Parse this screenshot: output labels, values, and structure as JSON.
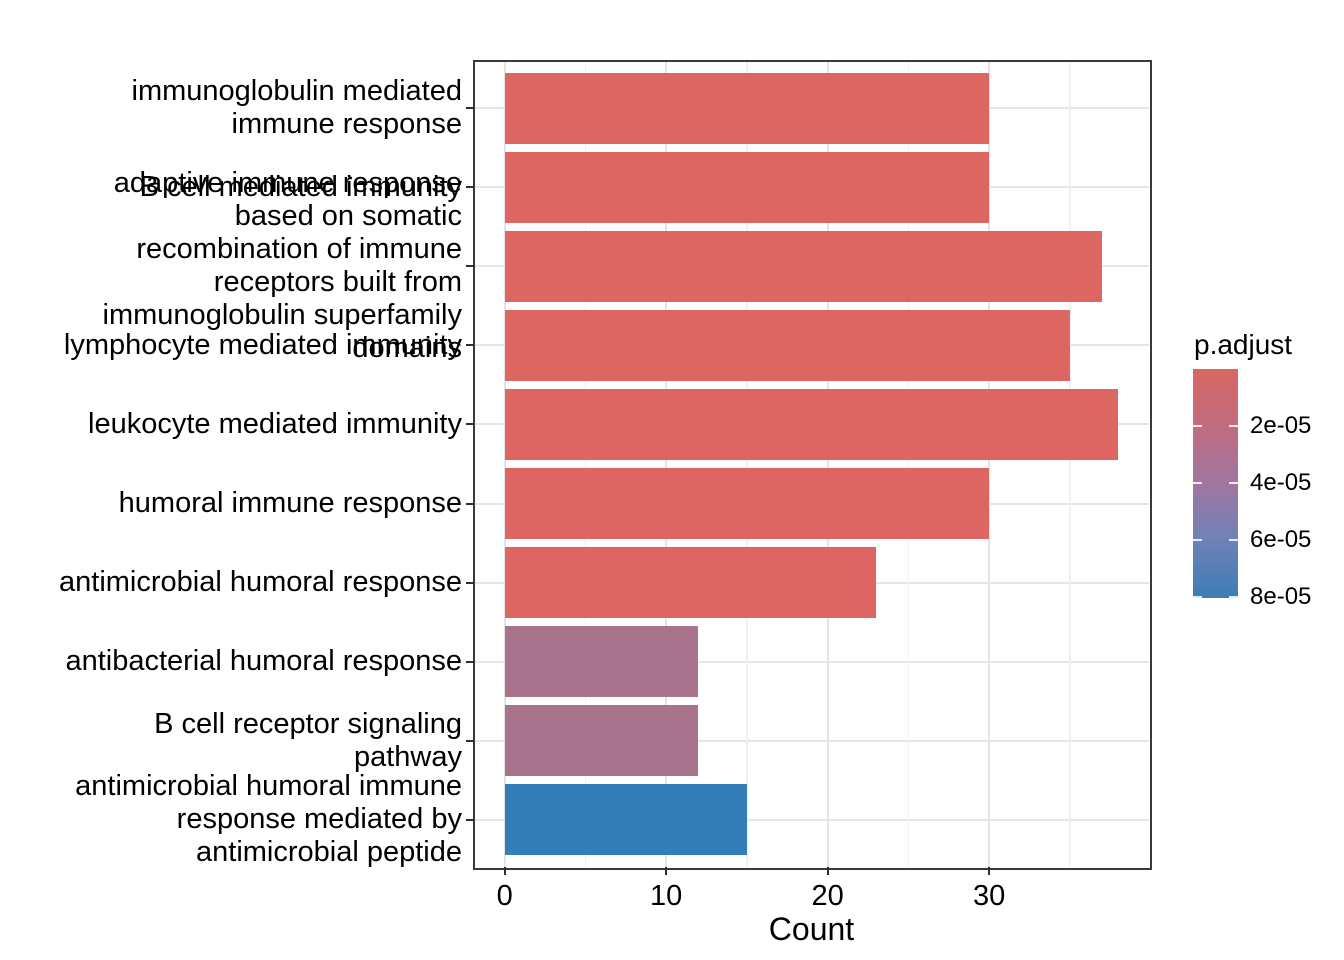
{
  "chart_data": {
    "type": "bar",
    "orientation": "horizontal",
    "title": "",
    "xlabel": "Count",
    "ylabel": "",
    "x_ticks": [
      0,
      10,
      20,
      30
    ],
    "x_minor_ticks": [
      5,
      15,
      25,
      35
    ],
    "xlim": [
      -1.9,
      39.9
    ],
    "grid": true,
    "legend_position": "right",
    "categories": [
      "immunoglobulin mediated immune response",
      "B cell mediated immunity",
      "adaptive immune response based on somatic recombination of immune receptors built from immunoglobulin superfamily domains",
      "lymphocyte mediated immunity",
      "leukocyte mediated immunity",
      "humoral immune response",
      "antimicrobial humoral response",
      "antibacterial humoral response",
      "B cell receptor signaling pathway",
      "antimicrobial humoral immune response mediated by antimicrobial peptide"
    ],
    "categories_wrapped": [
      [
        "immunoglobulin mediated",
        "immune response"
      ],
      [
        "B cell mediated immunity"
      ],
      [
        "adaptive immune response",
        "based on somatic",
        "recombination of immune",
        "receptors built from",
        "immunoglobulin superfamily",
        "domains"
      ],
      [
        "lymphocyte mediated immunity"
      ],
      [
        "leukocyte mediated immunity"
      ],
      [
        "humoral immune response"
      ],
      [
        "antimicrobial humoral response"
      ],
      [
        "antibacterial humoral response"
      ],
      [
        "B cell receptor signaling",
        "pathway"
      ],
      [
        "antimicrobial humoral immune",
        "response mediated by",
        "antimicrobial peptide"
      ]
    ],
    "values": [
      30,
      30,
      37,
      35,
      38,
      30,
      23,
      12,
      12,
      15
    ],
    "bar_colors": [
      "#DD6562",
      "#DD6562",
      "#DD6562",
      "#DD6562",
      "#DD6562",
      "#DD6562",
      "#DD6562",
      "#A7748B",
      "#A7748B",
      "#337EB8"
    ],
    "legend": {
      "title": "p.adjust",
      "range": [
        0,
        8.05e-05
      ],
      "tick_values": [
        2e-05,
        4e-05,
        6e-05,
        8e-05
      ],
      "tick_labels": [
        "2e-05",
        "4e-05",
        "6e-05",
        "8e-05"
      ],
      "color_scale": [
        {
          "value": 0,
          "color": "#D96762"
        },
        {
          "value": 2e-05,
          "color": "#C16C80"
        },
        {
          "value": 4e-05,
          "color": "#A1769F"
        },
        {
          "value": 6e-05,
          "color": "#6F82B7"
        },
        {
          "value": 8.05e-05,
          "color": "#3D7CB5"
        }
      ]
    }
  }
}
